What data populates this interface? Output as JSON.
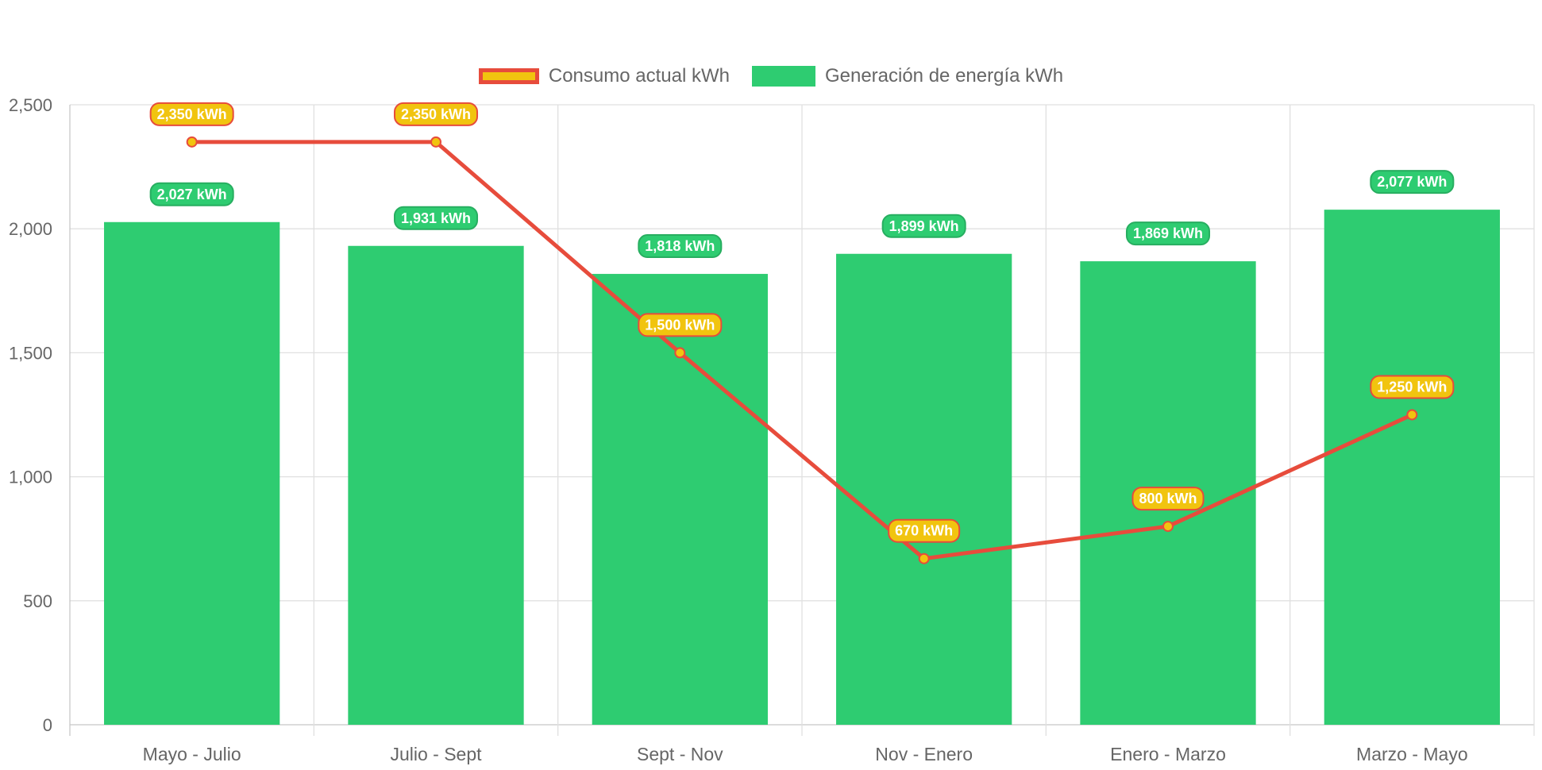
{
  "chart_data": {
    "type": "bar",
    "categories": [
      "Mayo - Julio",
      "Julio - Sept",
      "Sept - Nov",
      "Nov - Enero",
      "Enero - Marzo",
      "Marzo - Mayo"
    ],
    "series": [
      {
        "name": "Consumo actual kWh",
        "type": "line",
        "values": [
          2350,
          2350,
          1500,
          670,
          800,
          1250
        ],
        "labels": [
          "2,350 kWh",
          "2,350 kWh",
          "1,500 kWh",
          "670 kWh",
          "800 kWh",
          "1,250 kWh"
        ],
        "line_color": "#e74c3c",
        "fill_color": "#f1c40f"
      },
      {
        "name": "Generación de energía kWh",
        "type": "bar",
        "values": [
          2027,
          1931,
          1818,
          1899,
          1869,
          2077
        ],
        "labels": [
          "2,027 kWh",
          "1,931 kWh",
          "1,818 kWh",
          "1,899 kWh",
          "1,869 kWh",
          "2,077 kWh"
        ],
        "color": "#2ecc71",
        "label_border": "#27ae60"
      }
    ],
    "ylim": [
      0,
      2500
    ],
    "yticks": [
      "0",
      "500",
      "1,000",
      "1,500",
      "2,000",
      "2,500"
    ],
    "ytick_values": [
      0,
      500,
      1000,
      1500,
      2000,
      2500
    ],
    "grid": true,
    "legend_position": "top-center"
  }
}
